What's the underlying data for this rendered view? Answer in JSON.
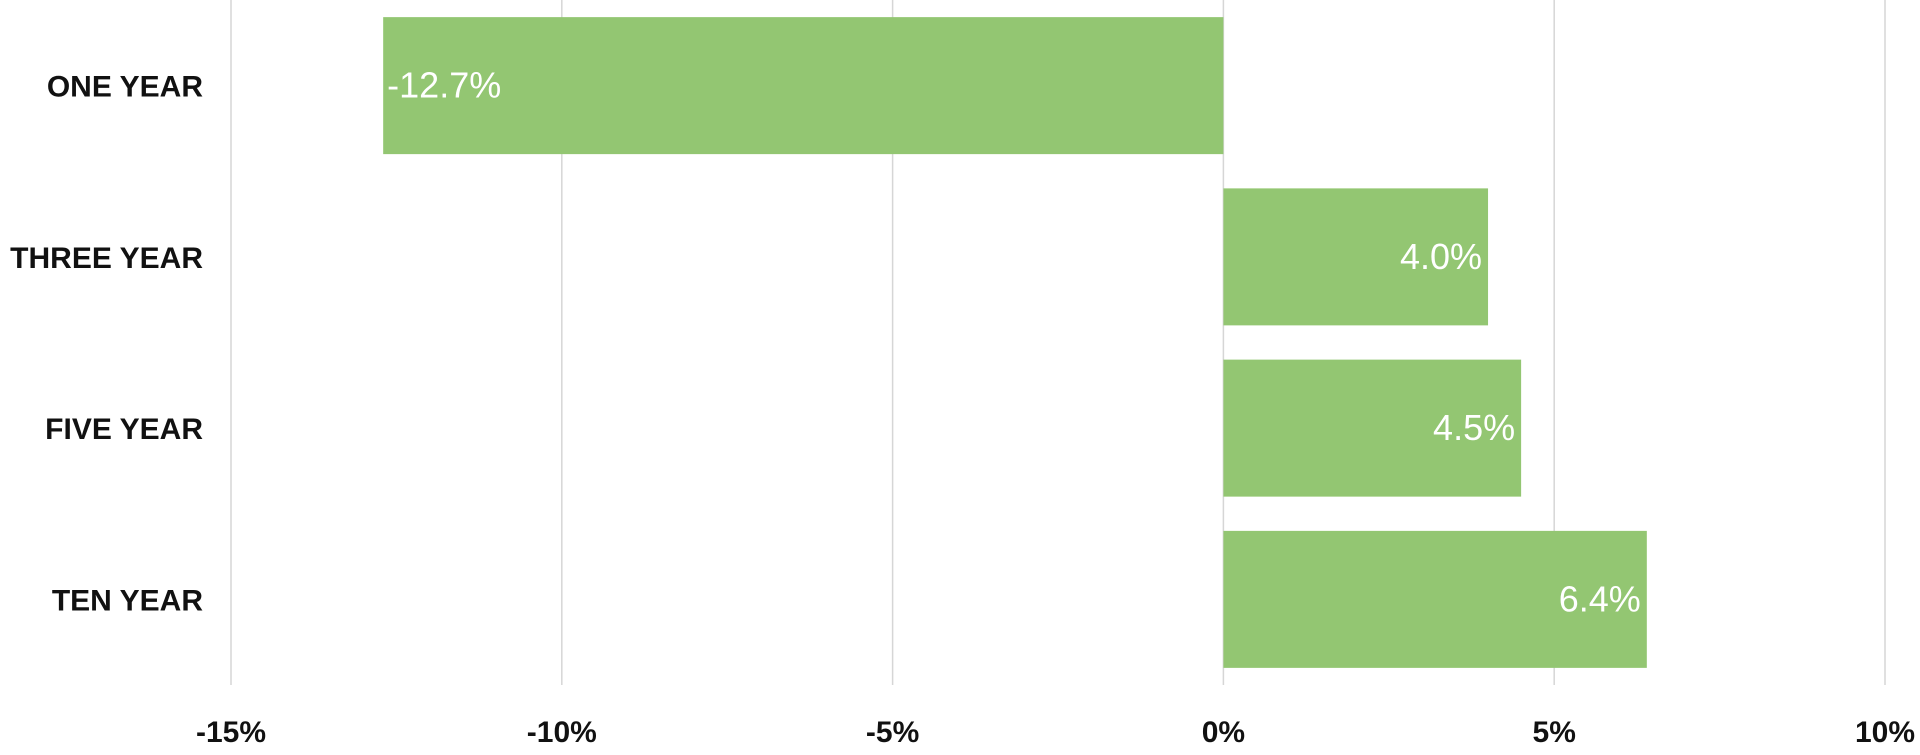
{
  "chart_data": {
    "type": "bar",
    "orientation": "horizontal",
    "categories": [
      "ONE YEAR",
      "THREE YEAR",
      "FIVE YEAR",
      "TEN YEAR"
    ],
    "values": [
      -12.7,
      4.0,
      4.5,
      6.4
    ],
    "data_labels": [
      "-12.7%",
      "4.0%",
      "4.5%",
      "6.4%"
    ],
    "xlim": [
      -15,
      10
    ],
    "xticks": [
      -15,
      -10,
      -5,
      0,
      5,
      10
    ],
    "xtick_labels": [
      "-15%",
      "-10%",
      "-5%",
      "0%",
      "5%",
      "10%"
    ],
    "grid": true,
    "legend": "none",
    "bar_color": "#93c672",
    "label_color": "#ffffff"
  }
}
